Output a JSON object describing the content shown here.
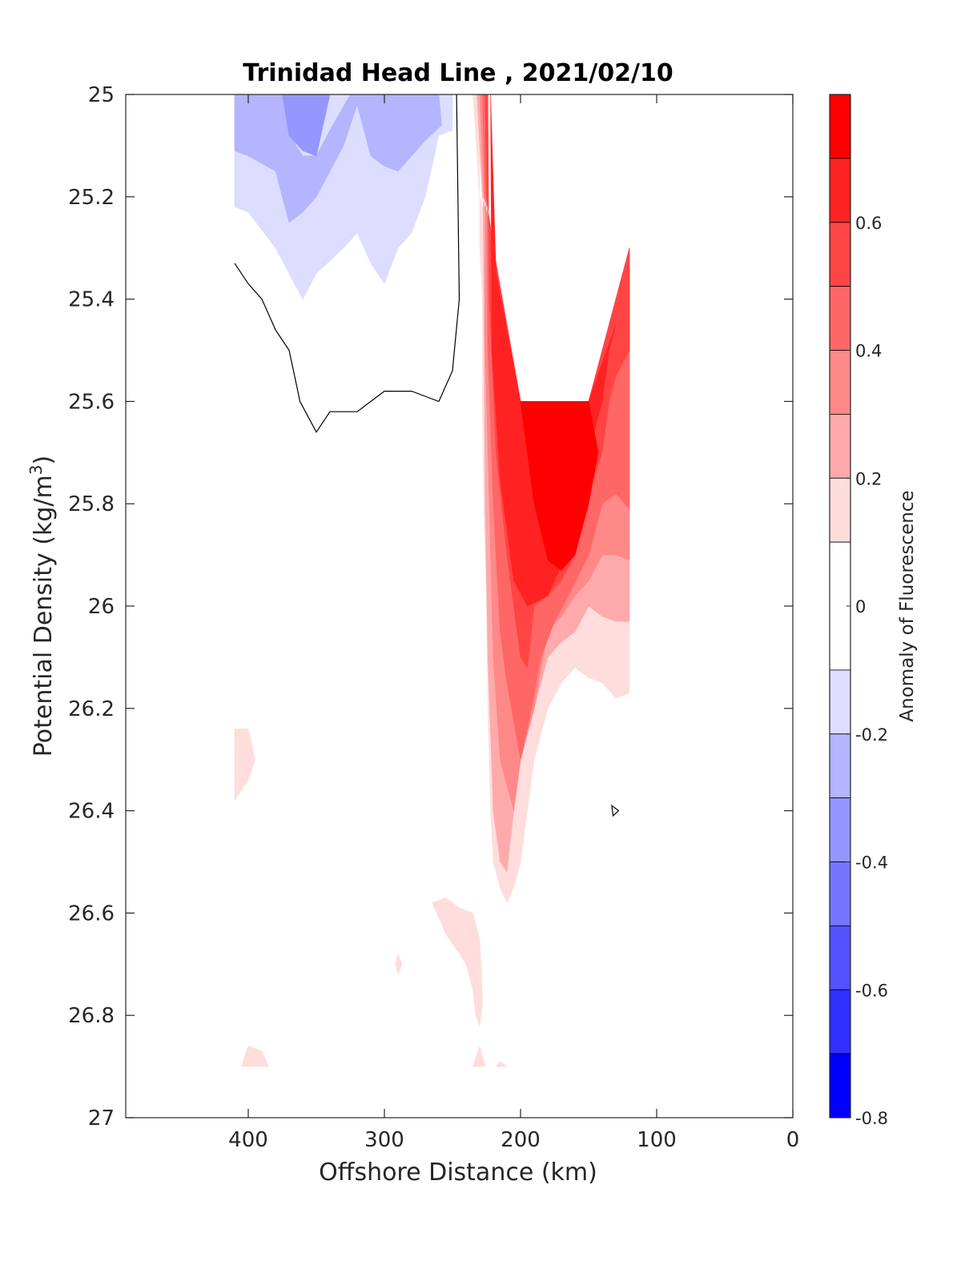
{
  "chart_data": {
    "type": "contour",
    "title": "Trinidad Head Line , 2021/02/10",
    "xlabel": "Offshore Distance (km)",
    "ylabel_main": "Potential Density (kg/m",
    "ylabel_sup": "3",
    "ylabel_close": ")",
    "xlim": [
      490,
      0
    ],
    "xticks": [
      400,
      300,
      200,
      100,
      0
    ],
    "ylim": [
      25,
      27
    ],
    "y_reversed": true,
    "yticks": [
      25,
      25.2,
      25.4,
      25.6,
      25.8,
      26,
      26.2,
      26.4,
      26.6,
      26.8,
      27
    ],
    "ytick_labels": [
      "25",
      "25.2",
      "25.4",
      "25.6",
      "25.8",
      "26",
      "26.2",
      "26.4",
      "26.6",
      "26.8",
      "27"
    ],
    "grid": false,
    "colorbar": {
      "label": "Anomaly of Fluorescence",
      "range": [
        -0.8,
        0.8
      ],
      "ticks": [
        0.6,
        0.4,
        0.2,
        0,
        -0.2,
        -0.4,
        -0.6,
        -0.8
      ],
      "tick_labels": [
        "0.6",
        "0.4",
        "0.2",
        "0",
        "-0.2",
        "-0.4",
        "-0.6",
        "-0.8"
      ],
      "levels": [
        {
          "from": 0.7,
          "to": 0.8,
          "color": "#ff0000"
        },
        {
          "from": 0.6,
          "to": 0.7,
          "color": "#ff2222"
        },
        {
          "from": 0.5,
          "to": 0.6,
          "color": "#ff4444"
        },
        {
          "from": 0.4,
          "to": 0.5,
          "color": "#ff6666"
        },
        {
          "from": 0.3,
          "to": 0.4,
          "color": "#ff8888"
        },
        {
          "from": 0.2,
          "to": 0.3,
          "color": "#ffaaaa"
        },
        {
          "from": 0.1,
          "to": 0.2,
          "color": "#ffdddd"
        },
        {
          "from": -0.1,
          "to": 0.1,
          "color": "#ffffff"
        },
        {
          "from": -0.2,
          "to": -0.1,
          "color": "#ddddff"
        },
        {
          "from": -0.3,
          "to": -0.2,
          "color": "#b4b4ff"
        },
        {
          "from": -0.4,
          "to": -0.3,
          "color": "#9696ff"
        },
        {
          "from": -0.5,
          "to": -0.4,
          "color": "#7474ff"
        },
        {
          "from": -0.6,
          "to": -0.5,
          "color": "#5252ff"
        },
        {
          "from": -0.7,
          "to": -0.6,
          "color": "#3030ff"
        },
        {
          "from": -0.8,
          "to": -0.7,
          "color": "#0000ff"
        }
      ]
    },
    "regions": [
      {
        "name": "negative-anomaly-region",
        "level": -0.15,
        "points": [
          [
            410,
            25
          ],
          [
            250,
            25
          ],
          [
            250,
            25.07
          ],
          [
            260,
            25.08
          ],
          [
            270,
            25.2
          ],
          [
            280,
            25.27
          ],
          [
            290,
            25.3
          ],
          [
            300,
            25.37
          ],
          [
            310,
            25.33
          ],
          [
            320,
            25.27
          ],
          [
            330,
            25.3
          ],
          [
            350,
            25.35
          ],
          [
            360,
            25.4
          ],
          [
            380,
            25.3
          ],
          [
            400,
            25.23
          ],
          [
            410,
            25.22
          ]
        ]
      },
      {
        "name": "negative-anomaly-region",
        "level": -0.25,
        "points": [
          [
            410,
            25
          ],
          [
            375,
            25
          ],
          [
            365,
            25.1
          ],
          [
            360,
            25.12
          ],
          [
            350,
            25.12
          ],
          [
            340,
            25.07
          ],
          [
            325,
            25
          ],
          [
            260,
            25
          ],
          [
            258,
            25.06
          ],
          [
            270,
            25.09
          ],
          [
            290,
            25.15
          ],
          [
            300,
            25.14
          ],
          [
            310,
            25.12
          ],
          [
            320,
            25.02
          ],
          [
            330,
            25.1
          ],
          [
            340,
            25.15
          ],
          [
            350,
            25.2
          ],
          [
            360,
            25.23
          ],
          [
            370,
            25.25
          ],
          [
            380,
            25.15
          ],
          [
            400,
            25.12
          ],
          [
            410,
            25.11
          ]
        ]
      },
      {
        "name": "negative-anomaly-region",
        "level": -0.35,
        "points": [
          [
            400,
            25
          ],
          [
            375,
            25
          ],
          [
            370,
            25.08
          ],
          [
            360,
            25.11
          ],
          [
            350,
            25.12
          ],
          [
            345,
            25.06
          ],
          [
            340,
            25
          ]
        ]
      },
      {
        "name": "positive-anomaly-region",
        "level": 0.15,
        "points": [
          [
            235,
            25
          ],
          [
            230,
            25
          ],
          [
            230,
            25.3
          ],
          [
            228,
            25.4
          ],
          [
            228,
            25.6
          ],
          [
            227,
            25.8
          ],
          [
            225,
            26
          ],
          [
            224,
            26.2
          ],
          [
            222,
            26.4
          ],
          [
            220,
            26.5
          ],
          [
            215,
            26.55
          ],
          [
            210,
            26.58
          ],
          [
            205,
            26.55
          ],
          [
            200,
            26.5
          ],
          [
            195,
            26.4
          ],
          [
            190,
            26.3
          ],
          [
            180,
            26.2
          ],
          [
            170,
            26.15
          ],
          [
            160,
            26.12
          ],
          [
            150,
            26.14
          ],
          [
            140,
            26.15
          ],
          [
            130,
            26.18
          ],
          [
            120,
            26.17
          ],
          [
            120,
            25.3
          ],
          [
            130,
            25.42
          ],
          [
            140,
            25.56
          ],
          [
            150,
            25.6
          ],
          [
            200,
            25.6
          ],
          [
            210,
            25.45
          ],
          [
            220,
            25.3
          ],
          [
            230,
            25.2
          ]
        ]
      },
      {
        "name": "positive-anomaly-region",
        "level": 0.25,
        "points": [
          [
            232,
            25
          ],
          [
            228,
            25
          ],
          [
            227,
            25.4
          ],
          [
            226,
            25.8
          ],
          [
            224,
            26.1
          ],
          [
            220,
            26.4
          ],
          [
            215,
            26.5
          ],
          [
            210,
            26.52
          ],
          [
            205,
            26.4
          ],
          [
            200,
            26.3
          ],
          [
            190,
            26.2
          ],
          [
            180,
            26.1
          ],
          [
            170,
            26.07
          ],
          [
            160,
            26.05
          ],
          [
            150,
            26
          ],
          [
            140,
            26.02
          ],
          [
            130,
            26.03
          ],
          [
            120,
            26.03
          ],
          [
            120,
            25.3
          ],
          [
            150,
            25.6
          ],
          [
            200,
            25.6
          ],
          [
            220,
            25.3
          ],
          [
            228,
            25.2
          ]
        ]
      },
      {
        "name": "positive-anomaly-region",
        "level": 0.35,
        "points": [
          [
            230,
            25
          ],
          [
            226,
            25
          ],
          [
            226,
            25.5
          ],
          [
            223,
            25.8
          ],
          [
            220,
            26.1
          ],
          [
            215,
            26.3
          ],
          [
            205,
            26.4
          ],
          [
            200,
            26.3
          ],
          [
            190,
            26.2
          ],
          [
            180,
            26.05
          ],
          [
            170,
            26.02
          ],
          [
            160,
            25.98
          ],
          [
            150,
            25.95
          ],
          [
            140,
            25.9
          ],
          [
            130,
            25.9
          ],
          [
            120,
            25.91
          ],
          [
            120,
            25.3
          ],
          [
            150,
            25.6
          ],
          [
            200,
            25.6
          ],
          [
            220,
            25.3
          ],
          [
            227,
            25.2
          ]
        ]
      },
      {
        "name": "positive-anomaly-region",
        "level": 0.45,
        "points": [
          [
            228,
            25
          ],
          [
            225,
            25
          ],
          [
            224,
            25.5
          ],
          [
            220,
            25.8
          ],
          [
            215,
            26.05
          ],
          [
            210,
            26.15
          ],
          [
            200,
            26.3
          ],
          [
            192,
            26.2
          ],
          [
            185,
            26.1
          ],
          [
            175,
            26.03
          ],
          [
            165,
            25.98
          ],
          [
            150,
            25.9
          ],
          [
            140,
            25.8
          ],
          [
            130,
            25.78
          ],
          [
            120,
            25.81
          ],
          [
            120,
            25.3
          ],
          [
            150,
            25.6
          ],
          [
            200,
            25.6
          ],
          [
            220,
            25.3
          ],
          [
            226,
            25.2
          ]
        ]
      },
      {
        "name": "positive-anomaly-region",
        "level": 0.55,
        "points": [
          [
            226,
            25
          ],
          [
            224,
            25
          ],
          [
            223,
            25.4
          ],
          [
            218,
            25.7
          ],
          [
            210,
            25.9
          ],
          [
            200,
            26.1
          ],
          [
            195,
            26.12
          ],
          [
            190,
            26
          ],
          [
            180,
            25.98
          ],
          [
            170,
            25.95
          ],
          [
            160,
            25.9
          ],
          [
            150,
            25.78
          ],
          [
            140,
            25.7
          ],
          [
            135,
            25.6
          ],
          [
            130,
            25.55
          ],
          [
            120,
            25.5
          ],
          [
            120,
            25.3
          ],
          [
            150,
            25.6
          ],
          [
            200,
            25.6
          ],
          [
            220,
            25.3
          ],
          [
            225,
            25.2
          ]
        ]
      },
      {
        "name": "positive-anomaly-region",
        "level": 0.65,
        "points": [
          [
            222,
            25
          ],
          [
            221,
            25.5
          ],
          [
            215,
            25.75
          ],
          [
            205,
            25.95
          ],
          [
            195,
            26
          ],
          [
            180,
            25.98
          ],
          [
            170,
            25.92
          ],
          [
            160,
            25.8
          ],
          [
            150,
            25.7
          ],
          [
            140,
            25.6
          ],
          [
            135,
            25.5
          ],
          [
            130,
            25.45
          ],
          [
            150,
            25.6
          ],
          [
            200,
            25.6
          ],
          [
            218,
            25.35
          ]
        ]
      },
      {
        "name": "positive-anomaly-region",
        "level": 0.75,
        "points": [
          [
            200,
            25.6
          ],
          [
            150,
            25.6
          ],
          [
            143,
            25.7
          ],
          [
            150,
            25.8
          ],
          [
            160,
            25.9
          ],
          [
            170,
            25.93
          ],
          [
            180,
            25.91
          ],
          [
            190,
            25.8
          ],
          [
            195,
            25.7
          ]
        ]
      },
      {
        "name": "positive-anomaly-region",
        "level": 0.15,
        "points": [
          [
            410,
            26.24
          ],
          [
            400,
            26.24
          ],
          [
            395,
            26.3
          ],
          [
            400,
            26.34
          ],
          [
            410,
            26.38
          ]
        ]
      },
      {
        "name": "positive-anomaly-region",
        "level": 0.15,
        "points": [
          [
            265,
            26.58
          ],
          [
            258,
            26.62
          ],
          [
            255,
            26.64
          ],
          [
            240,
            26.7
          ],
          [
            235,
            26.75
          ],
          [
            233,
            26.8
          ],
          [
            230,
            26.82
          ],
          [
            228,
            26.78
          ],
          [
            229,
            26.7
          ],
          [
            230,
            26.65
          ],
          [
            235,
            26.6
          ],
          [
            245,
            26.59
          ],
          [
            255,
            26.57
          ]
        ]
      },
      {
        "name": "positive-anomaly-region",
        "level": 0.15,
        "points": [
          [
            400,
            26.86
          ],
          [
            390,
            26.87
          ],
          [
            385,
            26.9
          ],
          [
            405,
            26.9
          ]
        ]
      },
      {
        "name": "positive-anomaly-region",
        "level": 0.15,
        "points": [
          [
            290,
            26.68
          ],
          [
            287,
            26.7
          ],
          [
            290,
            26.72
          ],
          [
            292,
            26.7
          ]
        ]
      },
      {
        "name": "positive-anomaly-region",
        "level": 0.15,
        "points": [
          [
            230,
            26.86
          ],
          [
            226,
            26.9
          ],
          [
            235,
            26.9
          ]
        ]
      },
      {
        "name": "positive-anomaly-region",
        "level": 0.15,
        "points": [
          [
            215,
            26.89
          ],
          [
            210,
            26.9
          ],
          [
            218,
            26.9
          ]
        ]
      }
    ],
    "zero_contours": [
      {
        "name": "zero-contour-line",
        "closed": false,
        "points": [
          [
            410,
            25.33
          ],
          [
            400,
            25.37
          ],
          [
            390,
            25.4
          ],
          [
            380,
            25.46
          ],
          [
            370,
            25.5
          ],
          [
            362,
            25.6
          ],
          [
            358,
            25.62
          ],
          [
            350,
            25.66
          ],
          [
            340,
            25.62
          ],
          [
            320,
            25.62
          ],
          [
            310,
            25.6
          ],
          [
            300,
            25.58
          ],
          [
            280,
            25.58
          ],
          [
            270,
            25.59
          ],
          [
            260,
            25.6
          ],
          [
            250,
            25.54
          ],
          [
            245,
            25.4
          ],
          [
            246,
            25.2
          ],
          [
            247,
            25.0
          ]
        ]
      },
      {
        "name": "zero-contour-line",
        "closed": true,
        "points": [
          [
            133,
            26.39
          ],
          [
            128,
            26.4
          ],
          [
            132,
            26.41
          ]
        ]
      }
    ]
  }
}
